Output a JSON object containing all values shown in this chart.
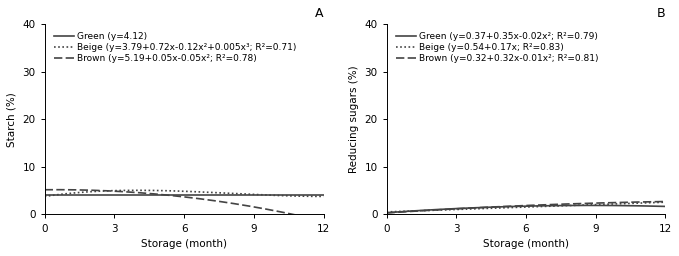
{
  "panel_A": {
    "title": "A",
    "ylabel": "Starch (%)",
    "xlabel": "Storage (month)",
    "ylim": [
      0,
      40
    ],
    "yticks": [
      0,
      10,
      20,
      30,
      40
    ],
    "xticks": [
      0,
      3,
      6,
      9,
      12
    ],
    "xlim": [
      0,
      12
    ],
    "lines": [
      {
        "label": "Green (y=4.12)",
        "coeffs": [
          4.12,
          0,
          0,
          0
        ],
        "linestyle": "solid",
        "color": "#444444",
        "linewidth": 1.2
      },
      {
        "label": "Beige (y=3.79+0.72x-0.12x²+0.005x³; R²=0.71)",
        "coeffs": [
          3.79,
          0.72,
          -0.12,
          0.005
        ],
        "linestyle": "dotted",
        "color": "#444444",
        "linewidth": 1.2
      },
      {
        "label": "Brown (y=5.19+0.05x-0.05x²; R²=0.78)",
        "coeffs": [
          5.19,
          0.05,
          -0.05,
          0
        ],
        "linestyle": "dashed",
        "color": "#444444",
        "linewidth": 1.2
      }
    ]
  },
  "panel_B": {
    "title": "B",
    "ylabel": "Reducing sugars (%)",
    "xlabel": "Storage (month)",
    "ylim": [
      0,
      40
    ],
    "yticks": [
      0,
      10,
      20,
      30,
      40
    ],
    "xticks": [
      0,
      3,
      6,
      9,
      12
    ],
    "xlim": [
      0,
      12
    ],
    "lines": [
      {
        "label": "Green (y=0.37+0.35x-0.02x²; R²=0.79)",
        "coeffs": [
          0.37,
          0.35,
          -0.02,
          0
        ],
        "linestyle": "solid",
        "color": "#444444",
        "linewidth": 1.2
      },
      {
        "label": "Beige (y=0.54+0.17x; R²=0.83)",
        "coeffs": [
          0.54,
          0.17,
          0,
          0
        ],
        "linestyle": "dotted",
        "color": "#444444",
        "linewidth": 1.2
      },
      {
        "label": "Brown (y=0.32+0.32x-0.01x²; R²=0.81)",
        "coeffs": [
          0.32,
          0.32,
          -0.01,
          0
        ],
        "linestyle": "dashed",
        "color": "#444444",
        "linewidth": 1.2
      }
    ]
  },
  "background_color": "#ffffff",
  "font_size": 7.5,
  "legend_font_size": 6.5,
  "title_font_size": 9
}
